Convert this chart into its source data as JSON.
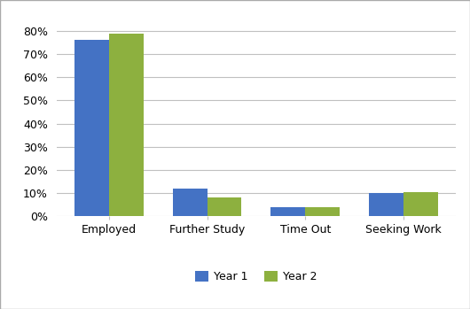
{
  "categories": [
    "Employed",
    "Further Study",
    "Time Out",
    "Seeking Work"
  ],
  "year1_values": [
    0.76,
    0.12,
    0.04,
    0.1
  ],
  "year2_values": [
    0.79,
    0.08,
    0.04,
    0.105
  ],
  "year1_color": "#4472C4",
  "year2_color": "#8DB03F",
  "legend_labels": [
    "Year 1",
    "Year 2"
  ],
  "ylim": [
    0,
    0.88
  ],
  "yticks": [
    0.0,
    0.1,
    0.2,
    0.3,
    0.4,
    0.5,
    0.6,
    0.7,
    0.8
  ],
  "background_color": "#FFFFFF",
  "grid_color": "#C0C0C0",
  "bar_width": 0.35,
  "legend_fontsize": 9,
  "tick_fontsize": 9,
  "figure_facecolor": "#FFFFFF",
  "border_color": "#AAAAAA"
}
